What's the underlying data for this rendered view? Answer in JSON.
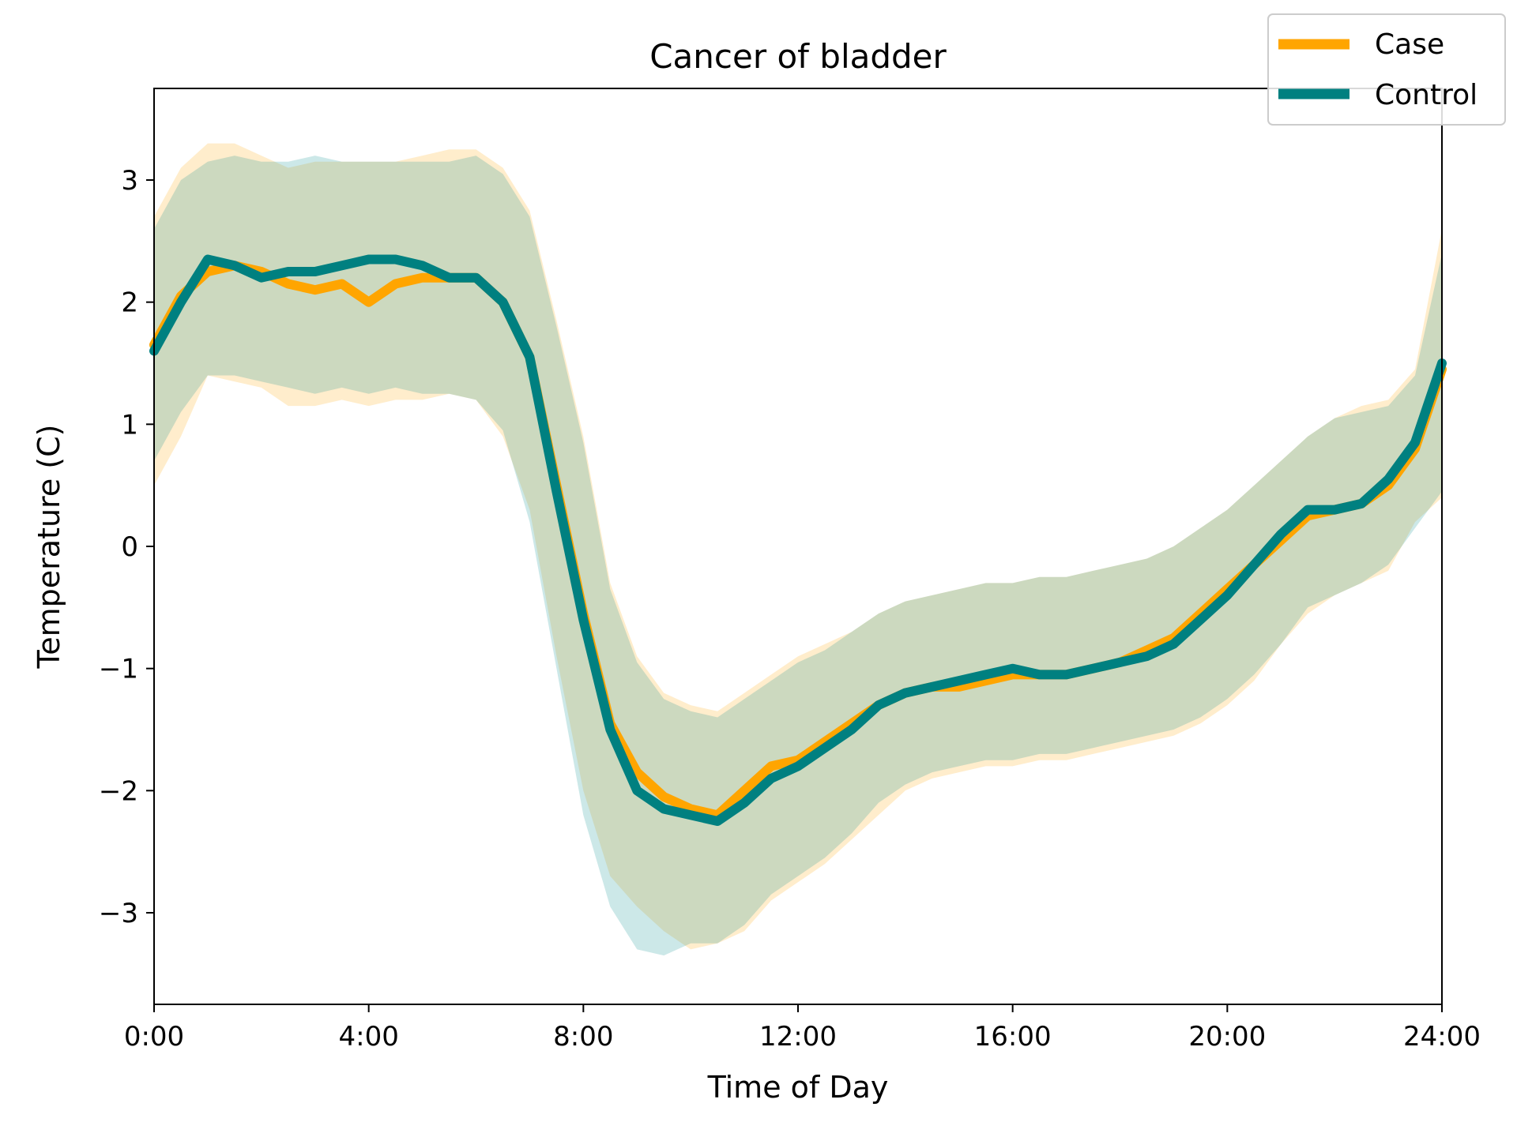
{
  "chart_data": {
    "type": "line",
    "title": "Cancer of bladder",
    "xlabel": "Time of Day",
    "ylabel": "Temperature (C)",
    "xlim": [
      0,
      24
    ],
    "ylim": [
      -3.75,
      3.75
    ],
    "grid": false,
    "legend_position": "top-right",
    "x_ticks": [
      {
        "value": 0,
        "label": "0:00"
      },
      {
        "value": 4,
        "label": "4:00"
      },
      {
        "value": 8,
        "label": "8:00"
      },
      {
        "value": 12,
        "label": "12:00"
      },
      {
        "value": 16,
        "label": "16:00"
      },
      {
        "value": 20,
        "label": "20:00"
      },
      {
        "value": 24,
        "label": "24:00"
      }
    ],
    "y_ticks": [
      {
        "value": 3,
        "label": "3"
      },
      {
        "value": 2,
        "label": "2"
      },
      {
        "value": 1,
        "label": "1"
      },
      {
        "value": 0,
        "label": "0"
      },
      {
        "value": -1,
        "label": "−1"
      },
      {
        "value": -2,
        "label": "−2"
      },
      {
        "value": -3,
        "label": "−3"
      }
    ],
    "x": [
      0,
      0.5,
      1,
      1.5,
      2,
      2.5,
      3,
      3.5,
      4,
      4.5,
      5,
      5.5,
      6,
      6.5,
      7,
      7.5,
      8,
      8.5,
      9,
      9.5,
      10,
      10.5,
      11,
      11.5,
      12,
      12.5,
      13,
      13.5,
      14,
      14.5,
      15,
      15.5,
      16,
      16.5,
      17,
      17.5,
      18,
      18.5,
      19,
      19.5,
      20,
      20.5,
      21,
      21.5,
      22,
      22.5,
      23,
      23.5,
      24
    ],
    "series": [
      {
        "name": "Case",
        "color": "#FFA500",
        "band_color": "#FFA500",
        "values": [
          1.65,
          2.05,
          2.25,
          2.3,
          2.25,
          2.15,
          2.1,
          2.15,
          2.0,
          2.15,
          2.2,
          2.2,
          2.2,
          2.0,
          1.55,
          0.5,
          -0.55,
          -1.45,
          -1.85,
          -2.05,
          -2.15,
          -2.2,
          -2.0,
          -1.8,
          -1.75,
          -1.6,
          -1.45,
          -1.3,
          -1.2,
          -1.15,
          -1.15,
          -1.1,
          -1.05,
          -1.05,
          -1.05,
          -1.0,
          -0.95,
          -0.85,
          -0.75,
          -0.55,
          -0.35,
          -0.15,
          0.05,
          0.25,
          0.3,
          0.35,
          0.5,
          0.8,
          1.45
        ],
        "lower": [
          0.5,
          0.9,
          1.4,
          1.35,
          1.3,
          1.15,
          1.15,
          1.2,
          1.15,
          1.2,
          1.2,
          1.25,
          1.2,
          0.9,
          0.3,
          -0.9,
          -2.0,
          -2.7,
          -2.95,
          -3.15,
          -3.3,
          -3.25,
          -3.15,
          -2.9,
          -2.75,
          -2.6,
          -2.4,
          -2.2,
          -2.0,
          -1.9,
          -1.85,
          -1.8,
          -1.8,
          -1.75,
          -1.75,
          -1.7,
          -1.65,
          -1.6,
          -1.55,
          -1.45,
          -1.3,
          -1.1,
          -0.8,
          -0.55,
          -0.4,
          -0.3,
          -0.2,
          0.2,
          0.4
        ],
        "upper": [
          2.7,
          3.1,
          3.3,
          3.3,
          3.2,
          3.1,
          3.15,
          3.15,
          3.15,
          3.15,
          3.2,
          3.25,
          3.25,
          3.1,
          2.75,
          1.85,
          0.9,
          -0.3,
          -0.9,
          -1.2,
          -1.3,
          -1.35,
          -1.2,
          -1.05,
          -0.9,
          -0.8,
          -0.7,
          -0.55,
          -0.45,
          -0.4,
          -0.35,
          -0.3,
          -0.3,
          -0.25,
          -0.25,
          -0.2,
          -0.15,
          -0.1,
          0.0,
          0.15,
          0.3,
          0.5,
          0.7,
          0.9,
          1.05,
          1.15,
          1.2,
          1.45,
          2.6
        ]
      },
      {
        "name": "Control",
        "color": "#008080",
        "band_color": "#008B8B",
        "values": [
          1.6,
          2.0,
          2.35,
          2.3,
          2.2,
          2.25,
          2.25,
          2.3,
          2.35,
          2.35,
          2.3,
          2.2,
          2.2,
          2.0,
          1.55,
          0.45,
          -0.6,
          -1.5,
          -2.0,
          -2.15,
          -2.2,
          -2.25,
          -2.1,
          -1.9,
          -1.8,
          -1.65,
          -1.5,
          -1.3,
          -1.2,
          -1.15,
          -1.1,
          -1.05,
          -1.0,
          -1.05,
          -1.05,
          -1.0,
          -0.95,
          -0.9,
          -0.8,
          -0.6,
          -0.4,
          -0.15,
          0.1,
          0.3,
          0.3,
          0.35,
          0.55,
          0.85,
          1.5
        ],
        "lower": [
          0.7,
          1.1,
          1.4,
          1.4,
          1.35,
          1.3,
          1.25,
          1.3,
          1.25,
          1.3,
          1.25,
          1.25,
          1.2,
          0.95,
          0.2,
          -1.0,
          -2.2,
          -2.95,
          -3.3,
          -3.35,
          -3.25,
          -3.25,
          -3.1,
          -2.85,
          -2.7,
          -2.55,
          -2.35,
          -2.1,
          -1.95,
          -1.85,
          -1.8,
          -1.75,
          -1.75,
          -1.7,
          -1.7,
          -1.65,
          -1.6,
          -1.55,
          -1.5,
          -1.4,
          -1.25,
          -1.05,
          -0.8,
          -0.5,
          -0.4,
          -0.3,
          -0.15,
          0.15,
          0.45
        ],
        "upper": [
          2.6,
          3.0,
          3.15,
          3.2,
          3.15,
          3.15,
          3.2,
          3.15,
          3.15,
          3.15,
          3.15,
          3.15,
          3.2,
          3.05,
          2.7,
          1.8,
          0.85,
          -0.35,
          -0.95,
          -1.25,
          -1.35,
          -1.4,
          -1.25,
          -1.1,
          -0.95,
          -0.85,
          -0.7,
          -0.55,
          -0.45,
          -0.4,
          -0.35,
          -0.3,
          -0.3,
          -0.25,
          -0.25,
          -0.2,
          -0.15,
          -0.1,
          0.0,
          0.15,
          0.3,
          0.5,
          0.7,
          0.9,
          1.05,
          1.1,
          1.15,
          1.4,
          2.4
        ]
      }
    ]
  }
}
